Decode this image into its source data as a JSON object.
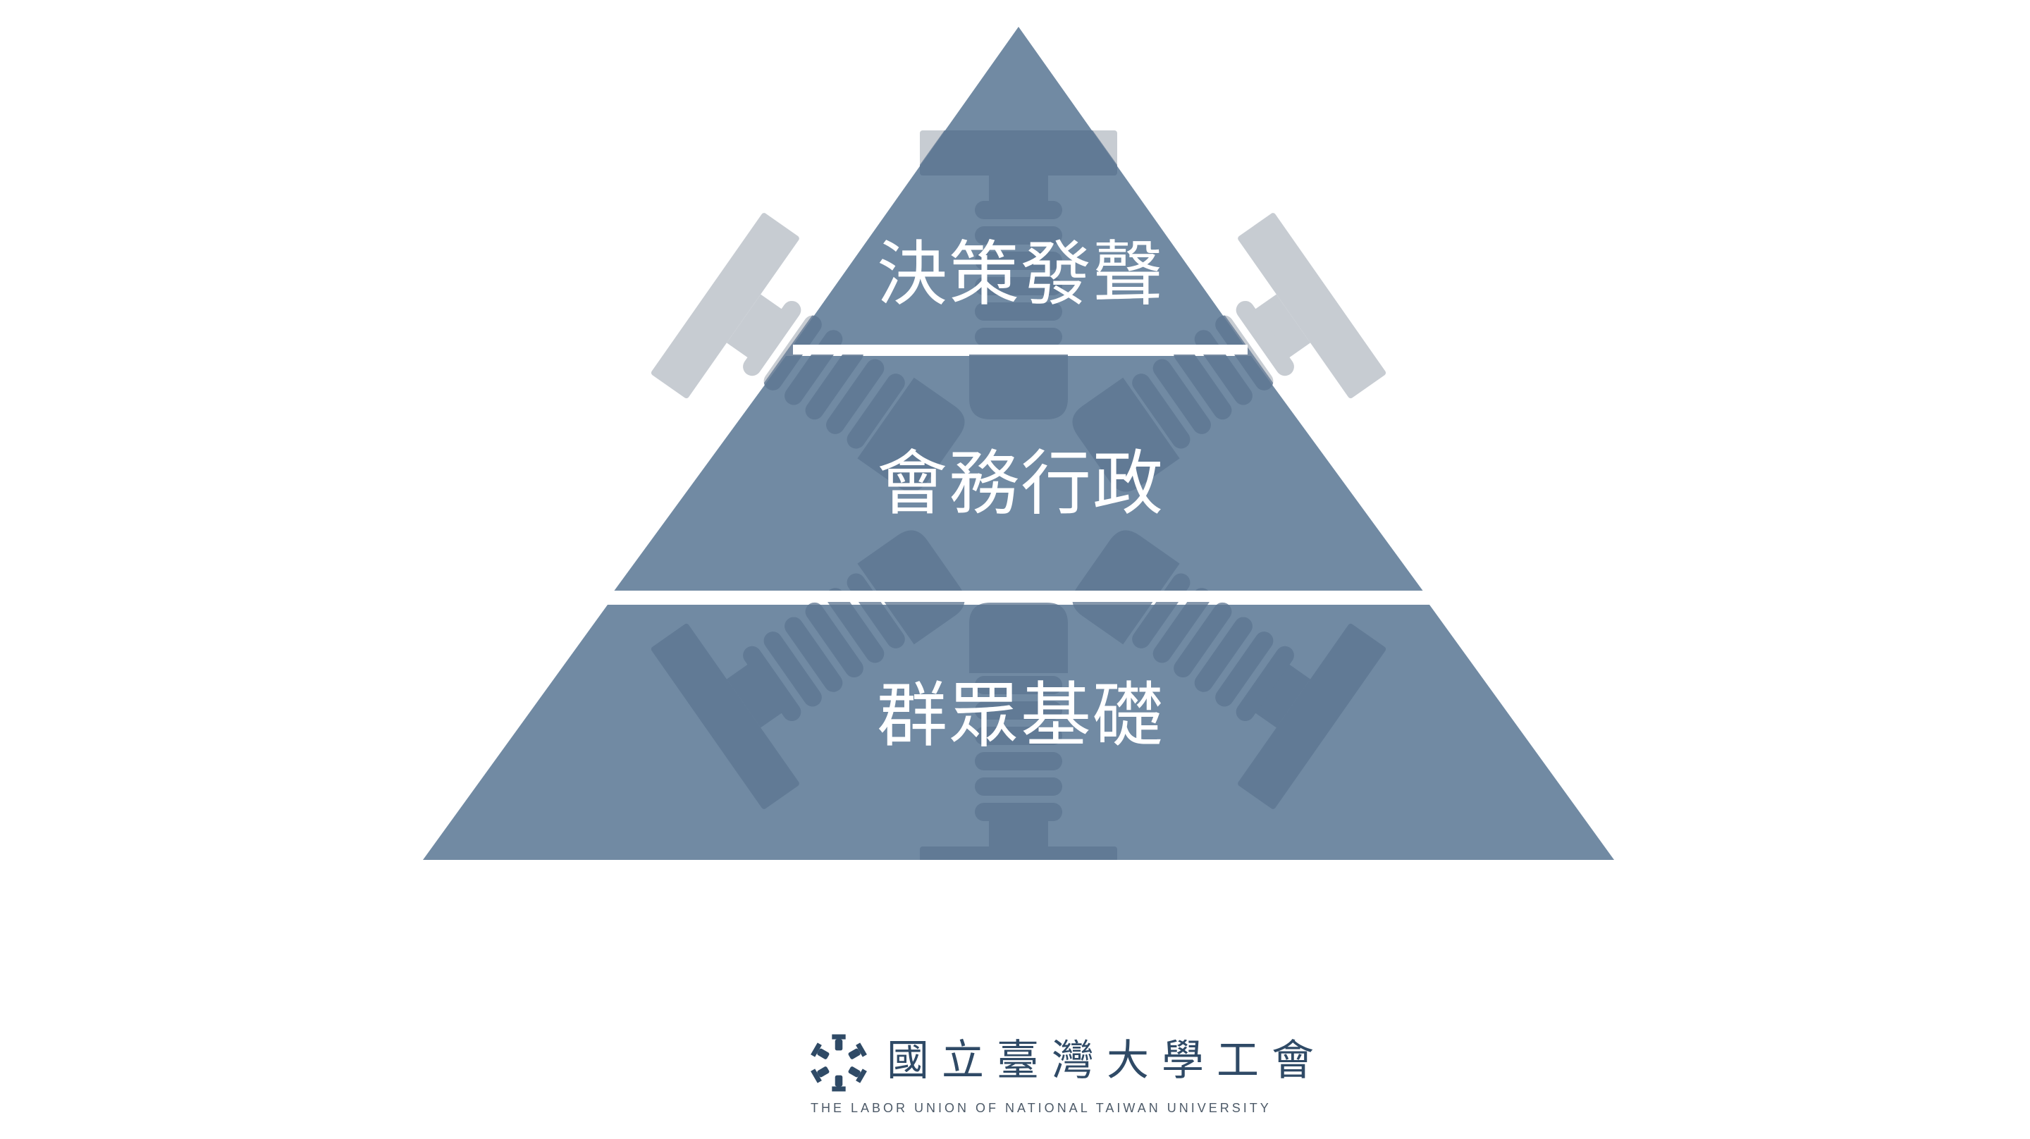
{
  "diagram": {
    "type": "pyramid",
    "tiers": [
      {
        "label": "決策發聲"
      },
      {
        "label": "會務行政"
      },
      {
        "label": "群眾基礎"
      }
    ],
    "colors": {
      "tier_fill": "#718aa3",
      "watermark": "#5c7590",
      "divider": "#ffffff",
      "background": "#ffffff",
      "text": "#ffffff"
    }
  },
  "footer": {
    "name": "國立臺灣大學工會",
    "english": "THE LABOR UNION OF NATIONAL TAIWAN UNIVERSITY",
    "logo_icon": "union-emblem-icon",
    "text_color": "#2f4a66"
  }
}
